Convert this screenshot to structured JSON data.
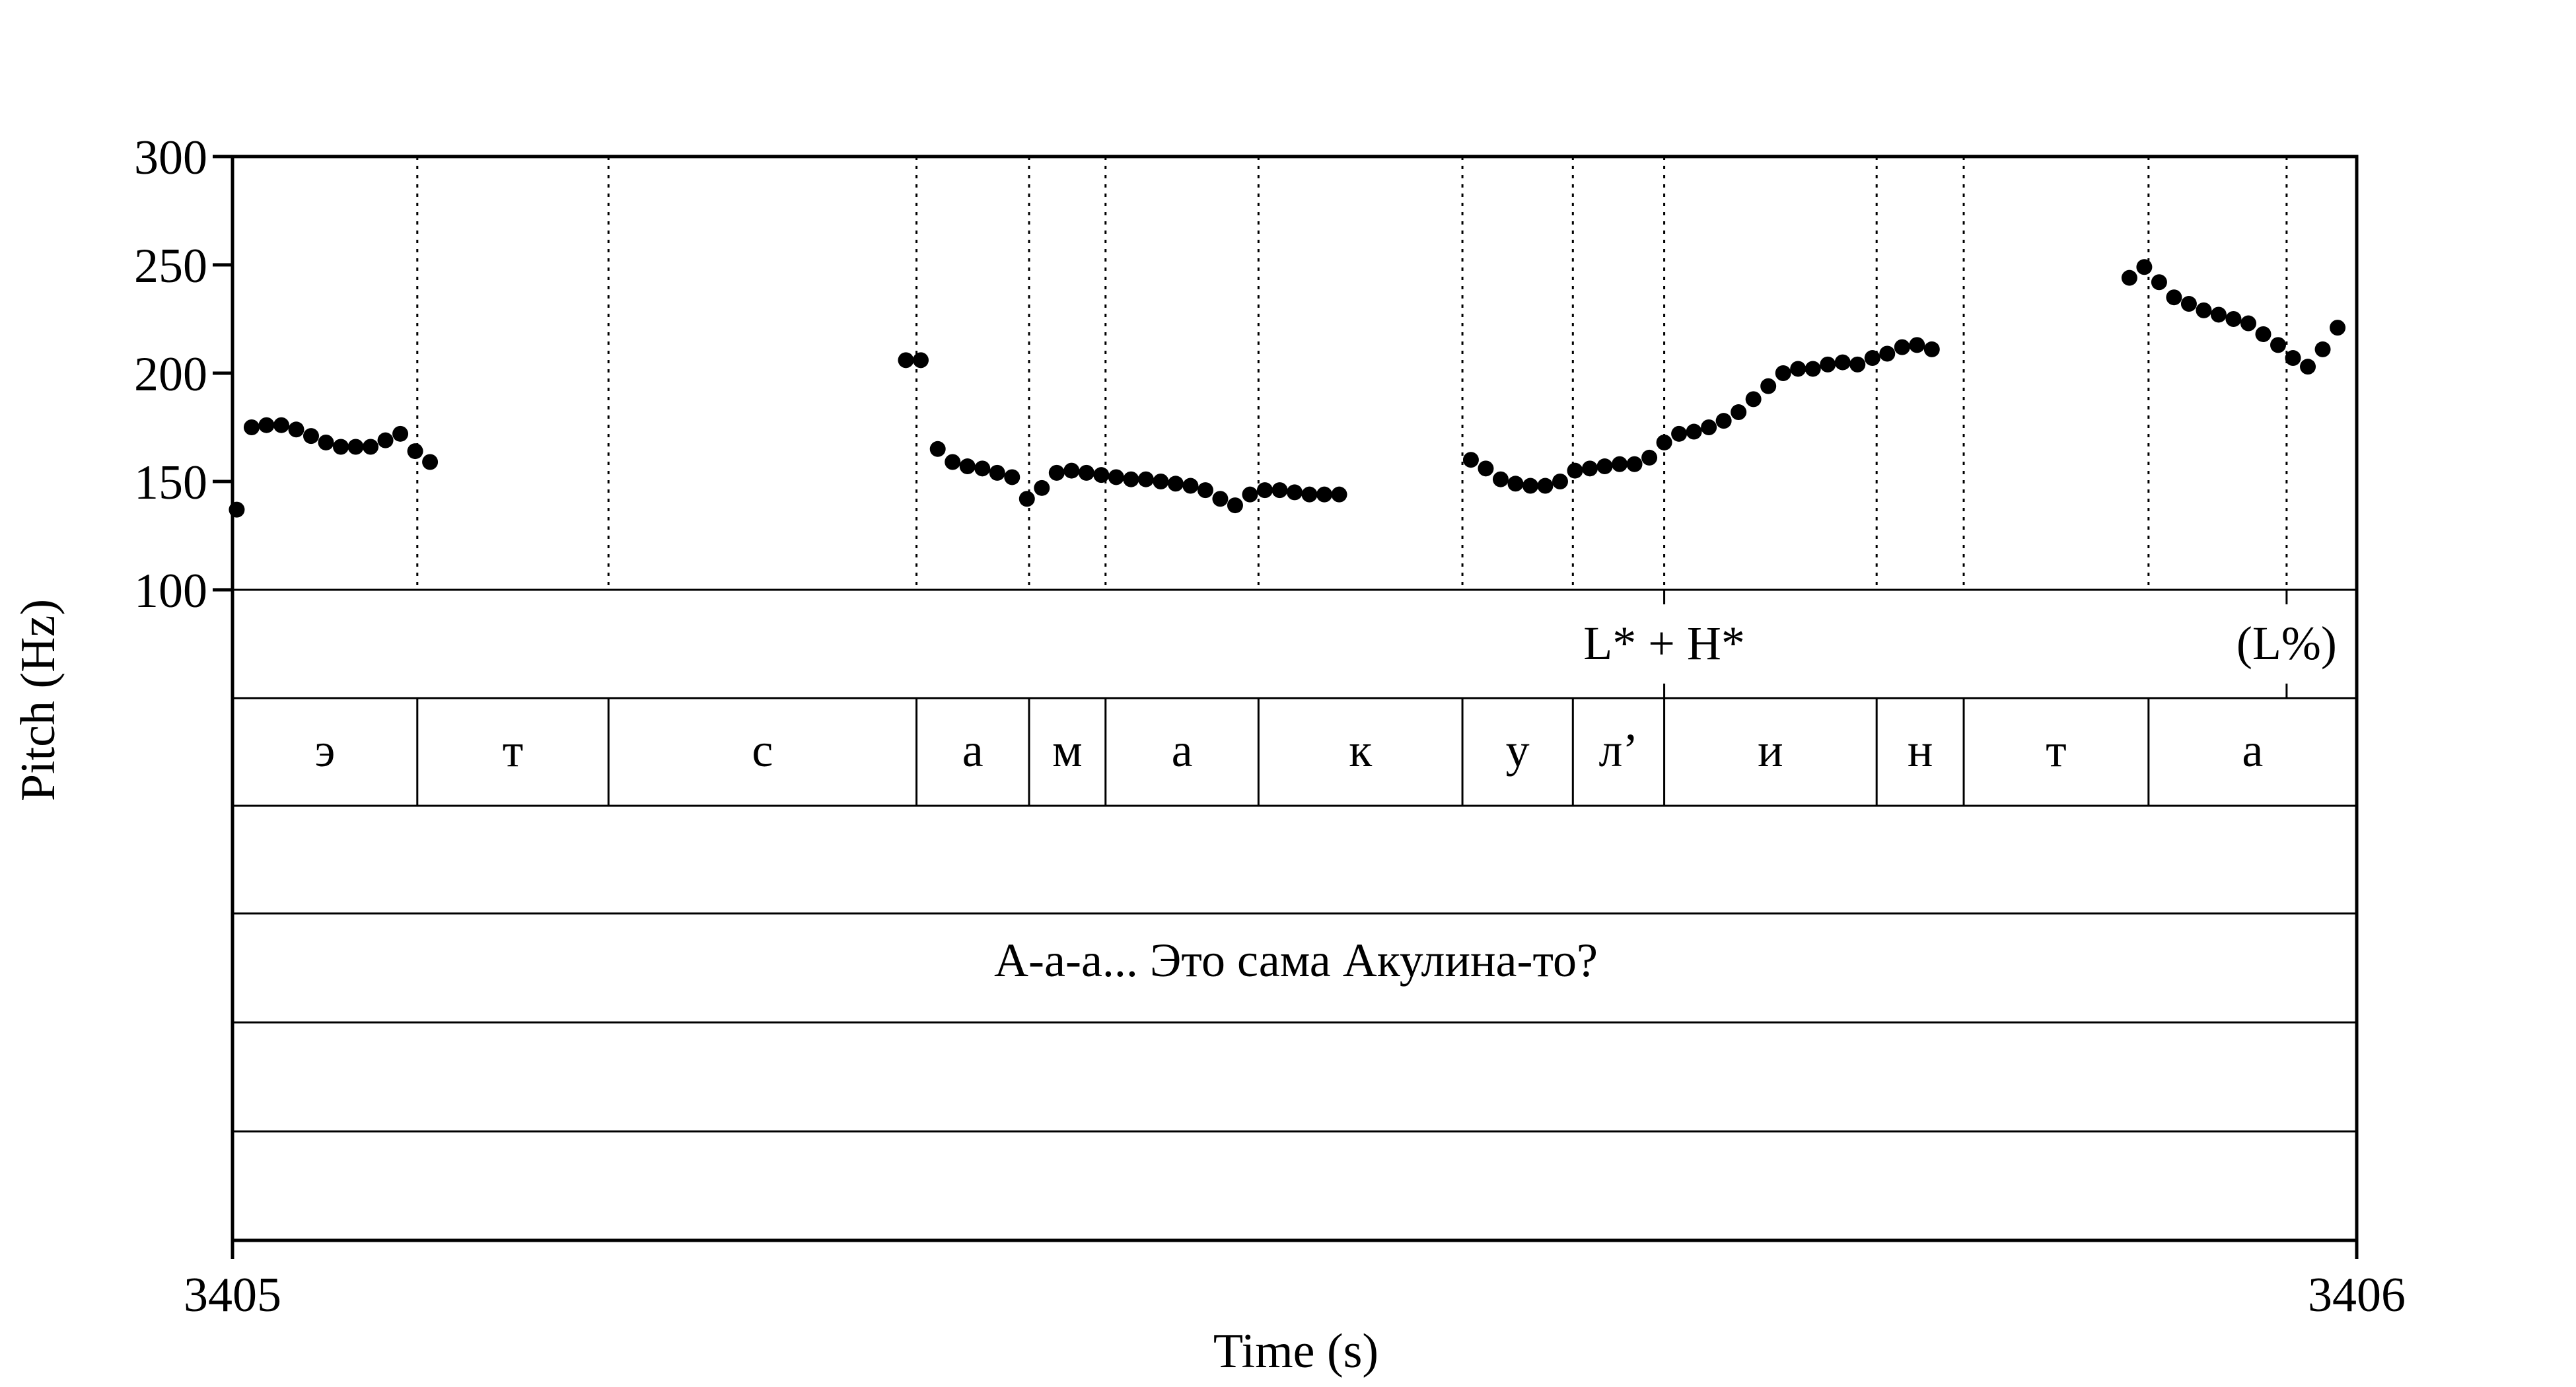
{
  "chart_data": {
    "type": "scatter",
    "title": "",
    "xlabel": "Time (s)",
    "ylabel": "Pitch (Hz)",
    "xlim": [
      3405,
      3406
    ],
    "ylim": [
      100,
      300
    ],
    "x_ticks": [
      "3405",
      "3406"
    ],
    "y_ticks": [
      "100",
      "150",
      "200",
      "250",
      "300"
    ],
    "grid": false,
    "legend": "none",
    "boundaries": [
      3405.087,
      3405.177,
      3405.322,
      3405.375,
      3405.411,
      3405.483,
      3405.579,
      3405.631,
      3405.674,
      3405.774,
      3405.815,
      3405.902,
      3405.967
    ],
    "tone_tier": [
      {
        "label": "L* + H*",
        "time": 3405.674
      },
      {
        "label": "(L%)",
        "time": 3405.967
      }
    ],
    "segments": [
      {
        "label": "э",
        "start": 3405.0,
        "end": 3405.087
      },
      {
        "label": "т",
        "start": 3405.087,
        "end": 3405.177
      },
      {
        "label": "с",
        "start": 3405.177,
        "end": 3405.322
      },
      {
        "label": "а",
        "start": 3405.322,
        "end": 3405.375
      },
      {
        "label": "м",
        "start": 3405.375,
        "end": 3405.411
      },
      {
        "label": "а",
        "start": 3405.411,
        "end": 3405.483
      },
      {
        "label": "к",
        "start": 3405.483,
        "end": 3405.579
      },
      {
        "label": "у",
        "start": 3405.579,
        "end": 3405.631
      },
      {
        "label": "л’",
        "start": 3405.631,
        "end": 3405.674
      },
      {
        "label": "и",
        "start": 3405.674,
        "end": 3405.774
      },
      {
        "label": "н",
        "start": 3405.774,
        "end": 3405.815
      },
      {
        "label": "т",
        "start": 3405.815,
        "end": 3405.902
      },
      {
        "label": "а",
        "start": 3405.902,
        "end": 3406.0
      }
    ],
    "utterance": "А-а-а... Это сама Акулина-то?",
    "series": [
      {
        "values": [
          [
            3405.002,
            137
          ],
          [
            3405.009,
            175
          ],
          [
            3405.016,
            176
          ],
          [
            3405.023,
            176
          ],
          [
            3405.03,
            174
          ],
          [
            3405.037,
            171
          ],
          [
            3405.044,
            168
          ],
          [
            3405.051,
            166
          ],
          [
            3405.058,
            166
          ],
          [
            3405.065,
            166
          ],
          [
            3405.072,
            169
          ],
          [
            3405.079,
            172
          ],
          [
            3405.086,
            164
          ],
          [
            3405.093,
            159
          ],
          [
            3405.317,
            206
          ],
          [
            3405.324,
            206
          ],
          [
            3405.332,
            165
          ],
          [
            3405.339,
            159
          ],
          [
            3405.346,
            157
          ],
          [
            3405.353,
            156
          ],
          [
            3405.36,
            154
          ],
          [
            3405.367,
            152
          ],
          [
            3405.374,
            142
          ],
          [
            3405.381,
            147
          ],
          [
            3405.388,
            154
          ],
          [
            3405.395,
            155
          ],
          [
            3405.402,
            154
          ],
          [
            3405.409,
            153
          ],
          [
            3405.416,
            152
          ],
          [
            3405.423,
            151
          ],
          [
            3405.43,
            151
          ],
          [
            3405.437,
            150
          ],
          [
            3405.444,
            149
          ],
          [
            3405.451,
            148
          ],
          [
            3405.458,
            146
          ],
          [
            3405.465,
            142
          ],
          [
            3405.472,
            139
          ],
          [
            3405.479,
            144
          ],
          [
            3405.486,
            146
          ],
          [
            3405.493,
            146
          ],
          [
            3405.5,
            145
          ],
          [
            3405.507,
            144
          ],
          [
            3405.514,
            144
          ],
          [
            3405.521,
            144
          ],
          [
            3405.583,
            160
          ],
          [
            3405.59,
            156
          ],
          [
            3405.597,
            151
          ],
          [
            3405.604,
            149
          ],
          [
            3405.611,
            148
          ],
          [
            3405.618,
            148
          ],
          [
            3405.625,
            150
          ],
          [
            3405.632,
            155
          ],
          [
            3405.639,
            156
          ],
          [
            3405.646,
            157
          ],
          [
            3405.653,
            158
          ],
          [
            3405.66,
            158
          ],
          [
            3405.667,
            161
          ],
          [
            3405.674,
            168
          ],
          [
            3405.681,
            172
          ],
          [
            3405.688,
            173
          ],
          [
            3405.695,
            175
          ],
          [
            3405.702,
            178
          ],
          [
            3405.709,
            182
          ],
          [
            3405.716,
            188
          ],
          [
            3405.723,
            194
          ],
          [
            3405.73,
            200
          ],
          [
            3405.737,
            202
          ],
          [
            3405.744,
            202
          ],
          [
            3405.751,
            204
          ],
          [
            3405.758,
            205
          ],
          [
            3405.765,
            204
          ],
          [
            3405.772,
            207
          ],
          [
            3405.779,
            209
          ],
          [
            3405.786,
            212
          ],
          [
            3405.793,
            213
          ],
          [
            3405.8,
            211
          ],
          [
            3405.893,
            244
          ],
          [
            3405.9,
            249
          ],
          [
            3405.907,
            242
          ],
          [
            3405.914,
            235
          ],
          [
            3405.921,
            232
          ],
          [
            3405.928,
            229
          ],
          [
            3405.935,
            227
          ],
          [
            3405.942,
            225
          ],
          [
            3405.949,
            223
          ],
          [
            3405.956,
            218
          ],
          [
            3405.963,
            213
          ],
          [
            3405.97,
            207
          ],
          [
            3405.977,
            203
          ],
          [
            3405.984,
            211
          ],
          [
            3405.991,
            221
          ]
        ]
      }
    ]
  }
}
